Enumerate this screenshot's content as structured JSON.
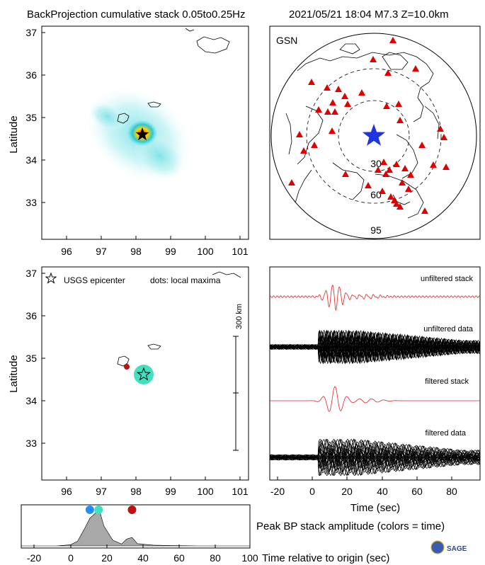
{
  "header": {
    "title": "BackProjection cumulative stack 0.05to0.25Hz",
    "event": "2021/05/21 18:04  M7.3  Z=10.0km"
  },
  "colors": {
    "stack_red": "#e02020",
    "station_red": "#e00000",
    "star_blue": "#1f33e0",
    "dot_blue": "#1e90ff",
    "dot_cyan": "#40e0c0",
    "dot_red": "#c01010",
    "amplitude_fill": "#a8a8a8"
  },
  "map_top": {
    "ylabel": "Latitude",
    "lat_ticks": [
      "37",
      "36",
      "35",
      "34",
      "33"
    ],
    "lon_ticks": [
      "96",
      "97",
      "98",
      "99",
      "100",
      "101"
    ]
  },
  "gsn_map": {
    "label": "GSN",
    "rings": [
      "30",
      "60",
      "95"
    ],
    "station_icon": "triangle-icon",
    "epicenter_icon": "star-icon"
  },
  "map_bottom": {
    "ylabel": "Latitude",
    "legend_epicenter": "USGS epicenter",
    "legend_dots": "dots: local maxima",
    "scale_label": "300 km",
    "lat_ticks": [
      "37",
      "36",
      "35",
      "34",
      "33"
    ],
    "lon_ticks": [
      "96",
      "97",
      "98",
      "99",
      "100",
      "101"
    ]
  },
  "traces": {
    "labels": [
      "unfiltered stack",
      "unfiltered data",
      "filtered stack",
      "filtered data"
    ],
    "xlabel": "Time (sec)",
    "x_ticks": [
      "-20",
      "0",
      "20",
      "40",
      "60",
      "80"
    ]
  },
  "amplitude": {
    "caption": "Peak BP stack amplitude (colors = time)",
    "xlabel": "Time relative to origin (sec)",
    "x_ticks": [
      "-20",
      "0",
      "20",
      "40",
      "60",
      "80",
      "100"
    ]
  },
  "logo": {
    "text": "SAGE"
  },
  "chart_data": [
    {
      "type": "heatmap",
      "title": "BackProjection cumulative stack 0.05to0.25Hz",
      "xlabel": "",
      "ylabel": "Latitude",
      "xlim": [
        95.3,
        101.3
      ],
      "ylim": [
        32.2,
        37.2
      ],
      "epicenter": {
        "lon": 98.25,
        "lat": 34.6
      },
      "peak": {
        "lon": 98.25,
        "lat": 34.6
      }
    },
    {
      "type": "scatter",
      "title": "",
      "ylabel": "Latitude",
      "xlim": [
        95.3,
        101.3
      ],
      "ylim": [
        32.2,
        37.2
      ],
      "epicenter": {
        "lon": 98.25,
        "lat": 34.6
      },
      "local_maxima": [
        {
          "lon": 98.25,
          "lat": 34.6,
          "time": 14
        },
        {
          "lon": 97.8,
          "lat": 34.78,
          "time": 33
        }
      ]
    },
    {
      "type": "line",
      "xlabel": "Time (sec)",
      "xlim": [
        -25,
        95
      ],
      "series": [
        {
          "name": "unfiltered stack"
        },
        {
          "name": "unfiltered data"
        },
        {
          "name": "filtered stack"
        },
        {
          "name": "filtered data"
        }
      ]
    },
    {
      "type": "area",
      "title": "Peak BP stack amplitude (colors = time)",
      "xlabel": "Time relative to origin (sec)",
      "xlim": [
        -30,
        100
      ],
      "x": [
        -30,
        -10,
        -2,
        2,
        6,
        9,
        12,
        14,
        17,
        22,
        27,
        30,
        33,
        36,
        40,
        45,
        55,
        70,
        100
      ],
      "values": [
        0,
        0,
        0.03,
        0.12,
        0.45,
        0.72,
        0.85,
        1.0,
        0.52,
        0.15,
        0.05,
        0.18,
        0.22,
        0.06,
        0.04,
        0.02,
        0.01,
        0,
        0
      ],
      "time_dots": [
        {
          "time": 9,
          "color": "#1e90ff"
        },
        {
          "time": 14,
          "color": "#40e0c0"
        },
        {
          "time": 33,
          "color": "#c01010"
        }
      ]
    }
  ]
}
